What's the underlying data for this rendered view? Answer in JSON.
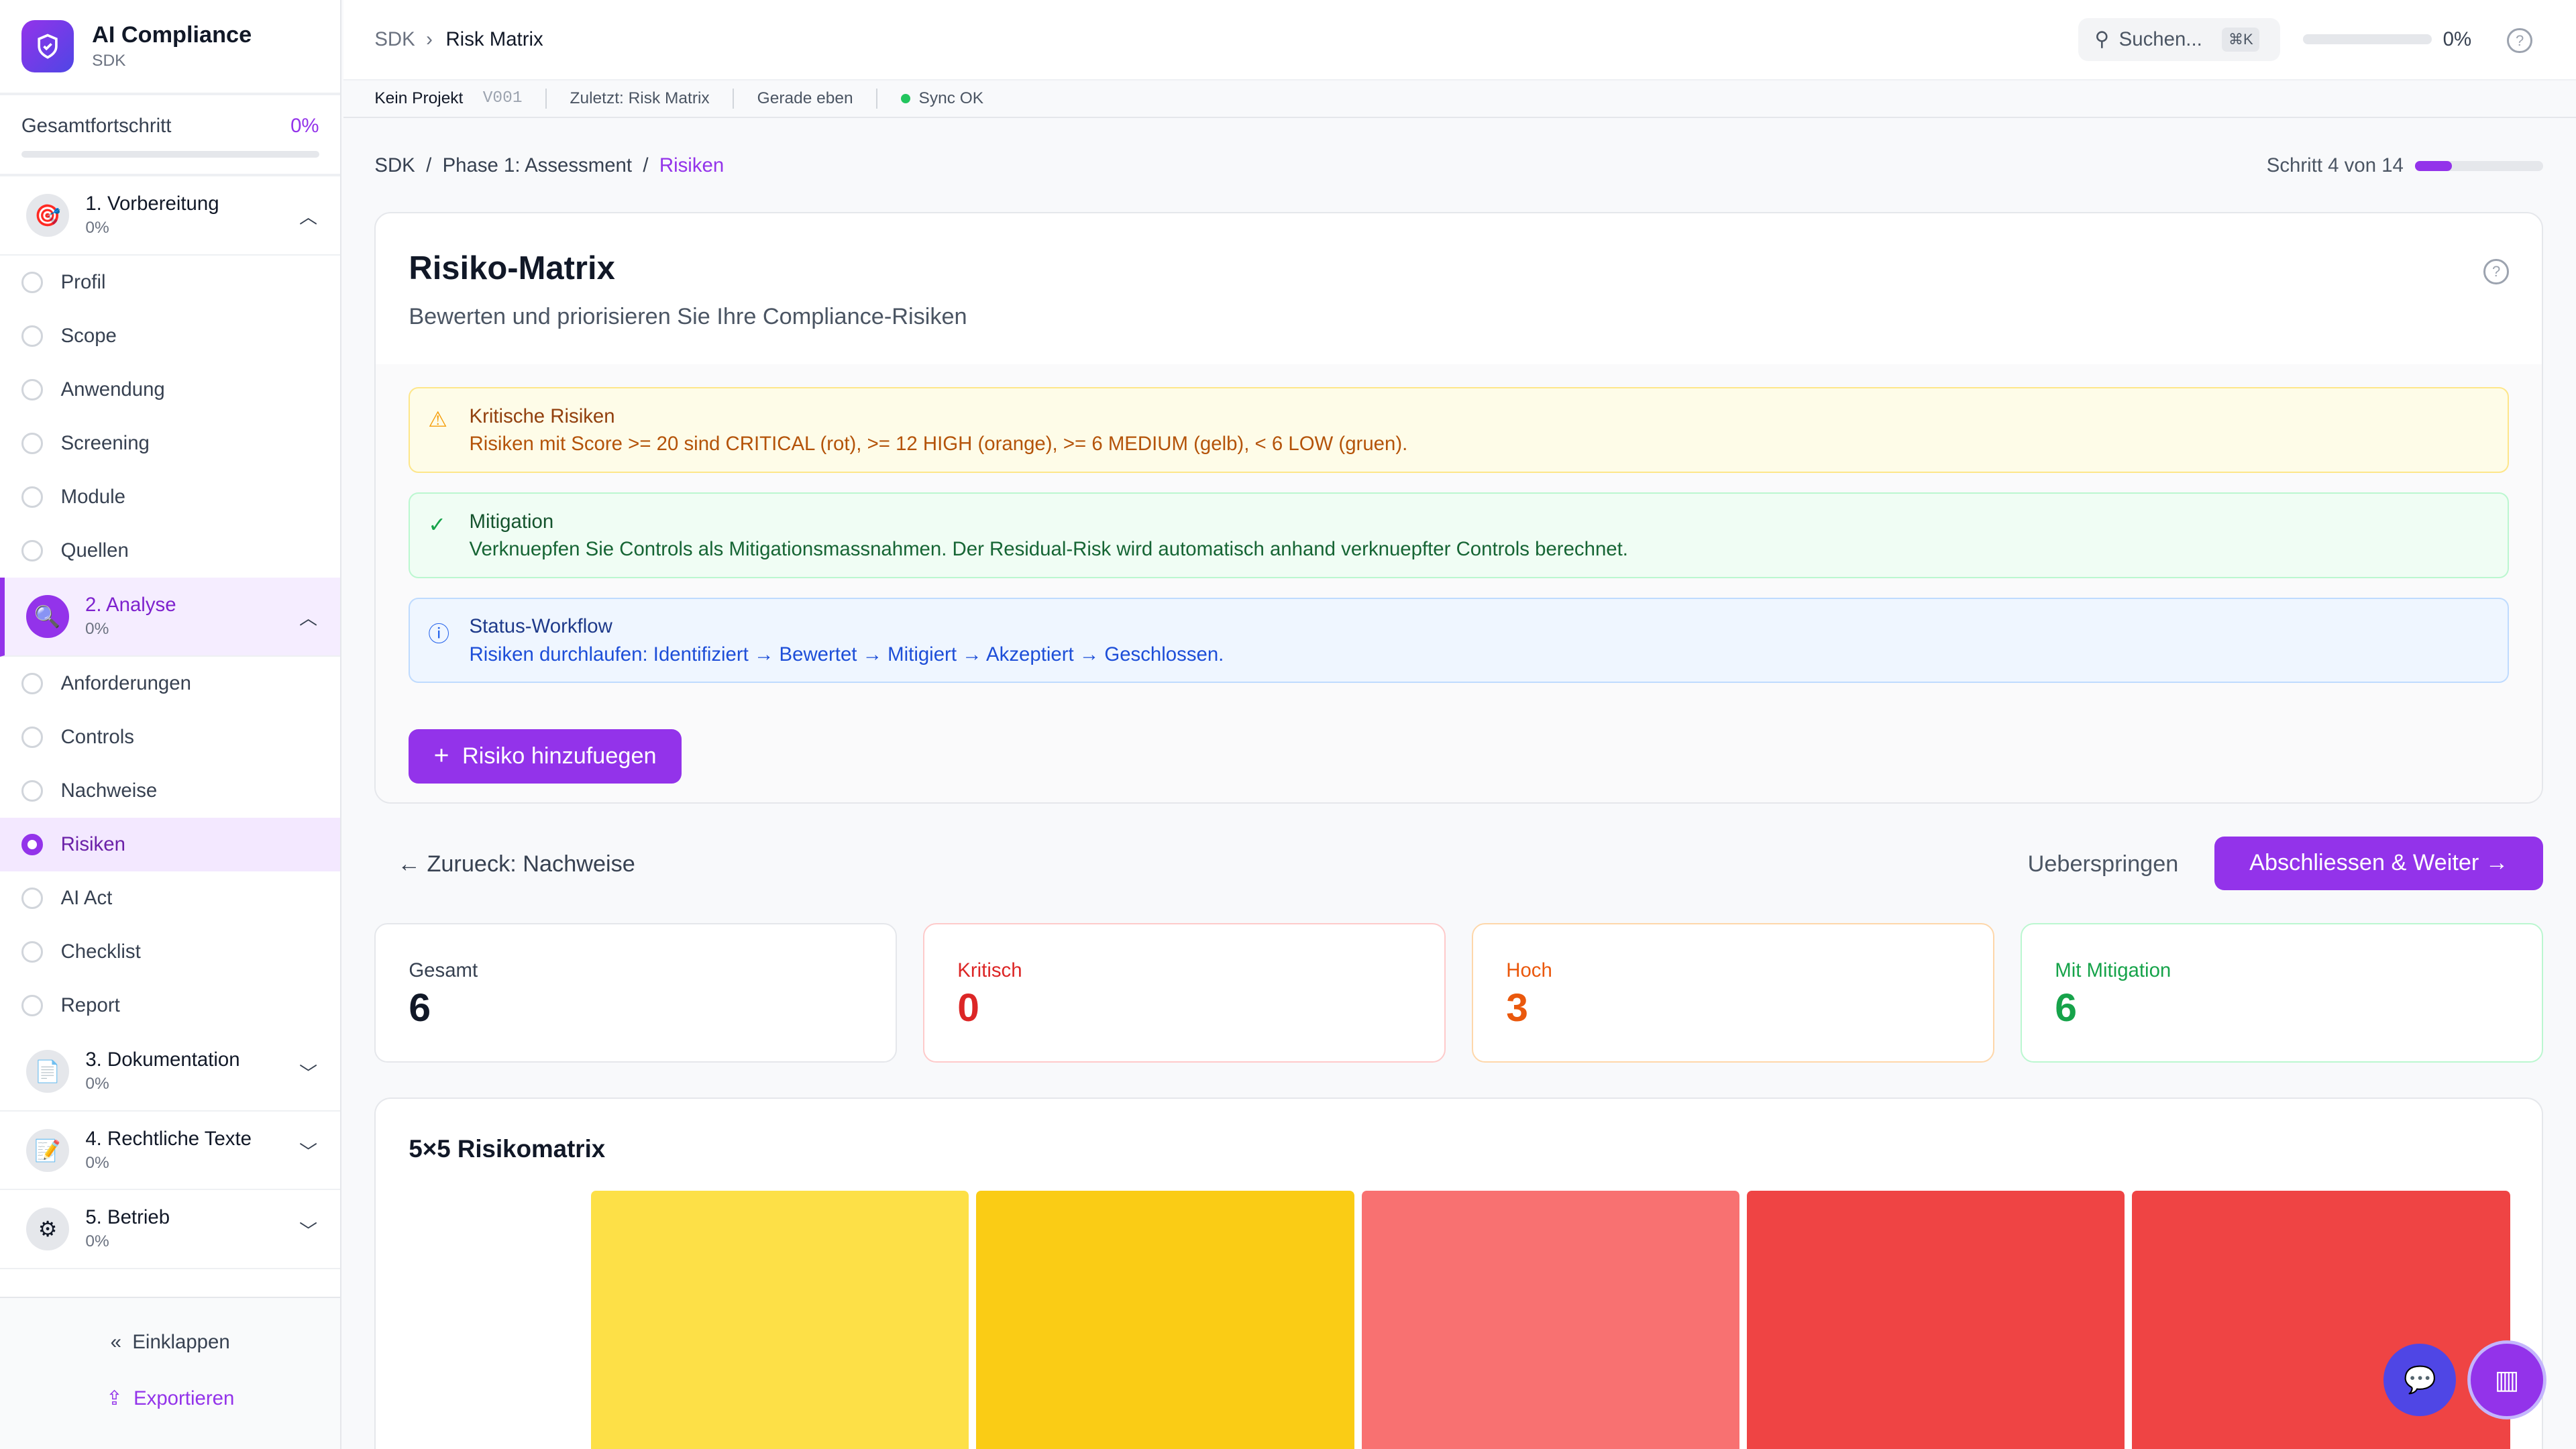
{
  "brand": {
    "title": "AI Compliance",
    "subtitle": "SDK"
  },
  "progress": {
    "label": "Gesamtfortschritt",
    "value": "0%"
  },
  "phases": [
    {
      "label": "1. Vorbereitung",
      "pct": "0%",
      "icon": "target-icon",
      "expanded": true,
      "steps": [
        {
          "label": "Profil"
        },
        {
          "label": "Scope"
        },
        {
          "label": "Anwendung"
        },
        {
          "label": "Screening"
        },
        {
          "label": "Module"
        },
        {
          "label": "Quellen"
        }
      ]
    },
    {
      "label": "2. Analyse",
      "pct": "0%",
      "icon": "magnifier-icon",
      "expanded": true,
      "active": true,
      "steps": [
        {
          "label": "Anforderungen"
        },
        {
          "label": "Controls"
        },
        {
          "label": "Nachweise"
        },
        {
          "label": "Risiken",
          "active": true
        },
        {
          "label": "AI Act"
        },
        {
          "label": "Checklist"
        },
        {
          "label": "Report"
        }
      ]
    },
    {
      "label": "3. Dokumentation",
      "pct": "0%",
      "icon": "document-icon"
    },
    {
      "label": "4. Rechtliche Texte",
      "pct": "0%",
      "icon": "memo-icon"
    },
    {
      "label": "5. Betrieb",
      "pct": "0%",
      "icon": "gear-icon"
    }
  ],
  "sidebar_footer": {
    "collapse": "Einklappen",
    "export": "Exportieren"
  },
  "topbar": {
    "crumb_root": "SDK",
    "crumb_current": "Risk Matrix",
    "search_placeholder": "Suchen...",
    "shortcut": "⌘K",
    "progress": "0%"
  },
  "statusbar": {
    "project": "Kein Projekt",
    "version": "V001",
    "last": "Zuletzt: Risk Matrix",
    "time": "Gerade eben",
    "sync": "Sync OK"
  },
  "breadcrumb": [
    "SDK",
    "Phase 1: Assessment",
    "Risiken"
  ],
  "step_info": {
    "text": "Schritt 4 von 14",
    "fraction": 0.2857
  },
  "page": {
    "title": "Risiko-Matrix",
    "subtitle": "Bewerten und priorisieren Sie Ihre Compliance-Risiken"
  },
  "alerts": [
    {
      "title": "Kritische Risiken",
      "text": "Risiken mit Score >= 20 sind CRITICAL (rot), >= 12 HIGH (orange), >= 6 MEDIUM (gelb), < 6 LOW (gruen).",
      "icon": "warning-icon"
    },
    {
      "title": "Mitigation",
      "text": "Verknuepfen Sie Controls als Mitigationsmassnahmen. Der Residual-Risk wird automatisch anhand verknuepfter Controls berechnet.",
      "icon": "check-circle-icon"
    },
    {
      "title": "Status-Workflow",
      "text": "Risiken durchlaufen: Identifiziert → Bewertet → Mitigiert → Akzeptiert → Geschlossen.",
      "icon": "info-icon"
    }
  ],
  "add_button": "Risiko hinzufuegen",
  "nav": {
    "back": "Zurueck: Nachweise",
    "skip": "Ueberspringen",
    "next": "Abschliessen & Weiter"
  },
  "stats": [
    {
      "label": "Gesamt",
      "value": "6",
      "color": "#111827"
    },
    {
      "label": "Kritisch",
      "value": "0",
      "color": "#dc2626"
    },
    {
      "label": "Hoch",
      "value": "3",
      "color": "#ea580c"
    },
    {
      "label": "Mit Mitigation",
      "value": "6",
      "color": "#16a34a"
    }
  ],
  "matrix": {
    "title": "5×5 Risikomatrix",
    "row_colors": [
      "#fde047",
      "#facc15",
      "#f87171",
      "#ef4444",
      "#ef4444"
    ]
  },
  "colors": {
    "accent": "#9333ea"
  }
}
